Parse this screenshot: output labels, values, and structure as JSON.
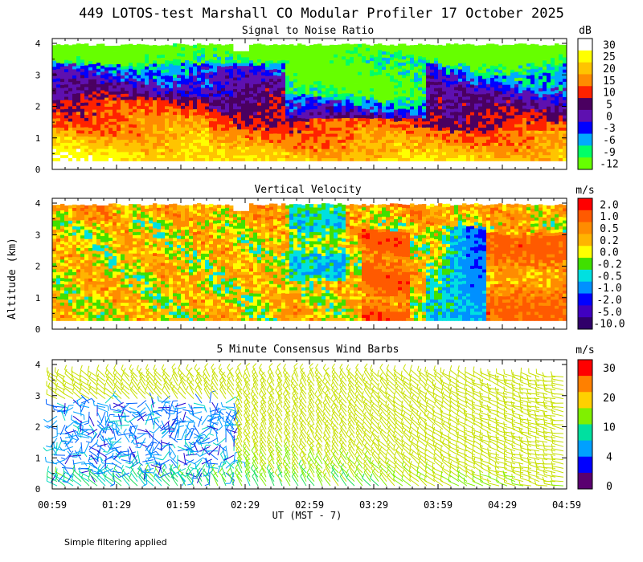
{
  "title": "449 LOTOS-test Marshall CO Modular Profiler 17 October 2025",
  "ylabel": "Altitude (km)",
  "xlabel": "UT  (MST - 7)",
  "footnote": "Simple filtering applied",
  "chart_data": [
    {
      "type": "heatmap",
      "title": "Signal to Noise Ratio",
      "xlabel": "UT  (MST - 7)",
      "ylabel": "Altitude (km)",
      "x_ticks": [
        "00:59",
        "01:29",
        "01:59",
        "02:29",
        "02:59",
        "03:29",
        "03:59",
        "04:29",
        "04:59"
      ],
      "y_ticks": [
        "0",
        "1",
        "2",
        "3",
        "4"
      ],
      "ylim": [
        0,
        4
      ],
      "colorbar": {
        "unit": "dB",
        "labels": [
          "30",
          "25",
          "20",
          "15",
          "10",
          "5",
          "0",
          "-3",
          "-6",
          "-9",
          "-12"
        ],
        "colors": [
          "#ffffff",
          "#ffff00",
          "#ffc400",
          "#ff8c00",
          "#ff2200",
          "#4a0060",
          "#5e10b0",
          "#0000ff",
          "#00aaff",
          "#00ff66",
          "#66ff00"
        ]
      }
    },
    {
      "type": "heatmap",
      "title": "Vertical Velocity",
      "xlabel": "UT  (MST - 7)",
      "ylabel": "Altitude (km)",
      "x_ticks": [
        "00:59",
        "01:29",
        "01:59",
        "02:29",
        "02:59",
        "03:29",
        "03:59",
        "04:29",
        "04:59"
      ],
      "y_ticks": [
        "0",
        "1",
        "2",
        "3",
        "4"
      ],
      "ylim": [
        0,
        4
      ],
      "colorbar": {
        "unit": "m/s",
        "labels": [
          "2.0",
          "1.0",
          "0.5",
          "0.2",
          "0.0",
          "-0.2",
          "-0.5",
          "-1.0",
          "-2.0",
          "-5.0",
          "-10.0"
        ],
        "colors": [
          "#ff0000",
          "#ff5a00",
          "#ff8c00",
          "#ffb400",
          "#ffff00",
          "#40e000",
          "#00e0e0",
          "#0090ff",
          "#0000ff",
          "#4000c0",
          "#30006a"
        ]
      }
    },
    {
      "type": "scatter",
      "title": "5 Minute Consensus Wind Barbs",
      "xlabel": "UT  (MST - 7)",
      "ylabel": "Altitude (km)",
      "x_ticks": [
        "00:59",
        "01:29",
        "01:59",
        "02:29",
        "02:59",
        "03:29",
        "03:59",
        "04:29",
        "04:59"
      ],
      "y_ticks": [
        "0",
        "1",
        "2",
        "3",
        "4"
      ],
      "ylim": [
        0,
        4
      ],
      "colorbar": {
        "unit": "m/s",
        "labels": [
          "30",
          "20",
          "10",
          "4",
          "0"
        ],
        "colors": [
          "#ff0000",
          "#ff8000",
          "#ffd000",
          "#80f000",
          "#00e0a0",
          "#00a0ff",
          "#0000ff",
          "#5a0070"
        ]
      }
    }
  ]
}
